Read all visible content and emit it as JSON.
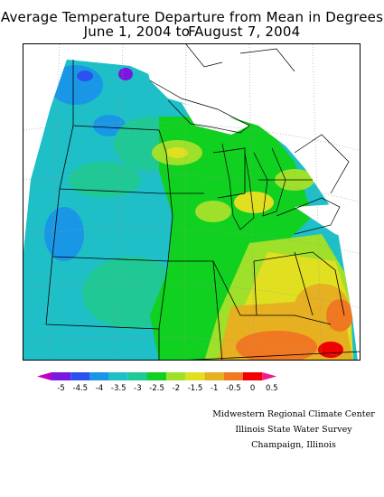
{
  "title": {
    "line1": "Average Temperature Departure from Mean in Degrees F",
    "line2": "June 1, 2004 to August 7, 2004"
  },
  "legend": {
    "labels": [
      "-5",
      "-4.5",
      "-4",
      "-3.5",
      "-3",
      "-2.5",
      "-2",
      "-1.5",
      "-1",
      "-0.5",
      "0",
      "0.5"
    ],
    "colors": [
      "#c000c0",
      "#7a17e0",
      "#2a52f0",
      "#1a96e6",
      "#1fbfc8",
      "#20c896",
      "#10d020",
      "#9ee02a",
      "#e0e020",
      "#e6b020",
      "#f07820",
      "#f00000",
      "#f01890"
    ]
  },
  "credits": {
    "line1": "Midwestern Regional Climate Center",
    "line2": "Illinois State Water Survey",
    "line3": "Champaign, Illinois"
  },
  "colors": {
    "outside_region": "#ffffff",
    "border_lines": "#000000",
    "graticule": "#9a9a9a"
  }
}
